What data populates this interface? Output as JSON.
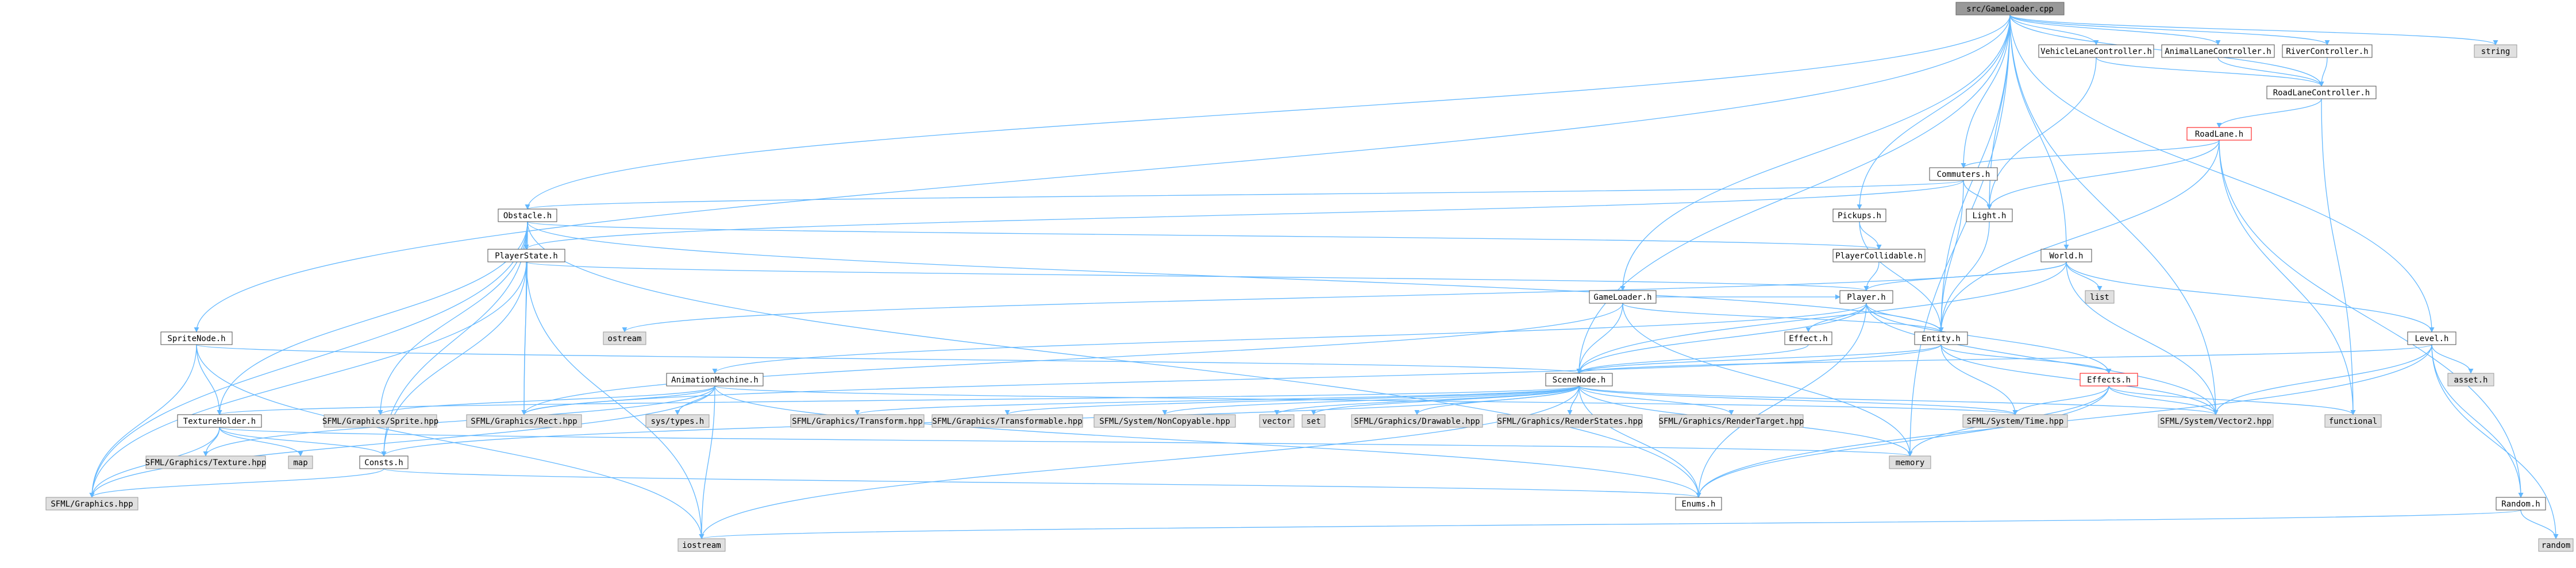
{
  "colors": {
    "edge": "#63b8ff",
    "project_fill": "#ffffff",
    "project_stroke": "#4d4d4d",
    "external_fill": "#e0e0e0",
    "external_stroke": "#999999",
    "root_fill": "#999999",
    "root_stroke": "#666666",
    "highlight_stroke": "#ff0000"
  },
  "nodes": [
    {
      "id": "root",
      "label": "src/GameLoader.cpp",
      "kind": "root"
    },
    {
      "id": "vlc",
      "label": "VehicleLaneController.h",
      "kind": "project"
    },
    {
      "id": "alc",
      "label": "AnimalLaneController.h",
      "kind": "project"
    },
    {
      "id": "rvc",
      "label": "RiverController.h",
      "kind": "project"
    },
    {
      "id": "string",
      "label": "string",
      "kind": "external"
    },
    {
      "id": "rlc",
      "label": "RoadLaneController.h",
      "kind": "project"
    },
    {
      "id": "roadlane",
      "label": "RoadLane.h",
      "kind": "highlight"
    },
    {
      "id": "commuters",
      "label": "Commuters.h",
      "kind": "project"
    },
    {
      "id": "obstacle",
      "label": "Obstacle.h",
      "kind": "project"
    },
    {
      "id": "pickups",
      "label": "Pickups.h",
      "kind": "project"
    },
    {
      "id": "light",
      "label": "Light.h",
      "kind": "project"
    },
    {
      "id": "playerstate",
      "label": "PlayerState.h",
      "kind": "project"
    },
    {
      "id": "playercollidable",
      "label": "PlayerCollidable.h",
      "kind": "project"
    },
    {
      "id": "world",
      "label": "World.h",
      "kind": "project"
    },
    {
      "id": "list",
      "label": "list",
      "kind": "external"
    },
    {
      "id": "gameloader",
      "label": "GameLoader.h",
      "kind": "project"
    },
    {
      "id": "player",
      "label": "Player.h",
      "kind": "project"
    },
    {
      "id": "ostream",
      "label": "ostream",
      "kind": "external"
    },
    {
      "id": "spritenode",
      "label": "SpriteNode.h",
      "kind": "project"
    },
    {
      "id": "level",
      "label": "Level.h",
      "kind": "project"
    },
    {
      "id": "effect",
      "label": "Effect.h",
      "kind": "project"
    },
    {
      "id": "entity",
      "label": "Entity.h",
      "kind": "project"
    },
    {
      "id": "animationmachine",
      "label": "AnimationMachine.h",
      "kind": "project"
    },
    {
      "id": "scenenode",
      "label": "SceneNode.h",
      "kind": "project"
    },
    {
      "id": "effects",
      "label": "Effects.h",
      "kind": "highlight"
    },
    {
      "id": "asseth",
      "label": "asset.h",
      "kind": "external"
    },
    {
      "id": "textureholder",
      "label": "TextureHolder.h",
      "kind": "project"
    },
    {
      "id": "sprite",
      "label": "SFML/Graphics/Sprite.hpp",
      "kind": "external"
    },
    {
      "id": "rect",
      "label": "SFML/Graphics/Rect.hpp",
      "kind": "external"
    },
    {
      "id": "systypes",
      "label": "sys/types.h",
      "kind": "external"
    },
    {
      "id": "transform",
      "label": "SFML/Graphics/Transform.hpp",
      "kind": "external"
    },
    {
      "id": "transformable",
      "label": "SFML/Graphics/Transformable.hpp",
      "kind": "external"
    },
    {
      "id": "noncopyable",
      "label": "SFML/System/NonCopyable.hpp",
      "kind": "external"
    },
    {
      "id": "vector",
      "label": "vector",
      "kind": "external"
    },
    {
      "id": "set",
      "label": "set",
      "kind": "external"
    },
    {
      "id": "drawable",
      "label": "SFML/Graphics/Drawable.hpp",
      "kind": "external"
    },
    {
      "id": "renderstates",
      "label": "SFML/Graphics/RenderStates.hpp",
      "kind": "external"
    },
    {
      "id": "rendertarget",
      "label": "SFML/Graphics/RenderTarget.hpp",
      "kind": "external"
    },
    {
      "id": "time",
      "label": "SFML/System/Time.hpp",
      "kind": "external"
    },
    {
      "id": "vector2",
      "label": "SFML/System/Vector2.hpp",
      "kind": "external"
    },
    {
      "id": "functional",
      "label": "functional",
      "kind": "external"
    },
    {
      "id": "texture",
      "label": "SFML/Graphics/Texture.hpp",
      "kind": "external"
    },
    {
      "id": "map",
      "label": "map",
      "kind": "external"
    },
    {
      "id": "consts",
      "label": "Consts.h",
      "kind": "project"
    },
    {
      "id": "memory",
      "label": "memory",
      "kind": "external"
    },
    {
      "id": "graphics",
      "label": "SFML/Graphics.hpp",
      "kind": "external"
    },
    {
      "id": "enums",
      "label": "Enums.h",
      "kind": "project"
    },
    {
      "id": "random",
      "label": "Random.h",
      "kind": "project"
    },
    {
      "id": "iostream",
      "label": "iostream",
      "kind": "external"
    },
    {
      "id": "randomh",
      "label": "random",
      "kind": "external"
    }
  ],
  "edges": [
    [
      "root",
      "vlc"
    ],
    [
      "root",
      "alc"
    ],
    [
      "root",
      "rvc"
    ],
    [
      "root",
      "string"
    ],
    [
      "root",
      "rlc"
    ],
    [
      "root",
      "commuters"
    ],
    [
      "root",
      "obstacle"
    ],
    [
      "root",
      "pickups"
    ],
    [
      "root",
      "light"
    ],
    [
      "root",
      "world"
    ],
    [
      "root",
      "gameloader"
    ],
    [
      "root",
      "spritenode"
    ],
    [
      "root",
      "level"
    ],
    [
      "root",
      "entity"
    ],
    [
      "root",
      "scenenode"
    ],
    [
      "root",
      "vector2"
    ],
    [
      "root",
      "memory"
    ],
    [
      "vlc",
      "rlc"
    ],
    [
      "vlc",
      "light"
    ],
    [
      "alc",
      "rlc"
    ],
    [
      "rvc",
      "rlc"
    ],
    [
      "rlc",
      "roadlane"
    ],
    [
      "rlc",
      "functional"
    ],
    [
      "roadlane",
      "commuters"
    ],
    [
      "roadlane",
      "light"
    ],
    [
      "roadlane",
      "entity"
    ],
    [
      "roadlane",
      "random"
    ],
    [
      "roadlane",
      "functional"
    ],
    [
      "commuters",
      "obstacle"
    ],
    [
      "commuters",
      "light"
    ],
    [
      "commuters",
      "entity"
    ],
    [
      "commuters",
      "playerstate"
    ],
    [
      "obstacle",
      "playerstate"
    ],
    [
      "obstacle",
      "playercollidable"
    ],
    [
      "obstacle",
      "entity"
    ],
    [
      "obstacle",
      "sprite"
    ],
    [
      "obstacle",
      "rect"
    ],
    [
      "obstacle",
      "textureholder"
    ],
    [
      "obstacle",
      "consts"
    ],
    [
      "obstacle",
      "graphics"
    ],
    [
      "obstacle",
      "enums"
    ],
    [
      "pickups",
      "playercollidable"
    ],
    [
      "pickups",
      "entity"
    ],
    [
      "light",
      "entity"
    ],
    [
      "playerstate",
      "player"
    ],
    [
      "playerstate",
      "rect"
    ],
    [
      "playerstate",
      "consts"
    ],
    [
      "playerstate",
      "iostream"
    ],
    [
      "playerstate",
      "graphics"
    ],
    [
      "playercollidable",
      "player"
    ],
    [
      "world",
      "list"
    ],
    [
      "world",
      "player"
    ],
    [
      "world",
      "scenenode"
    ],
    [
      "world",
      "vector2"
    ],
    [
      "world",
      "level"
    ],
    [
      "world",
      "ostream"
    ],
    [
      "gameloader",
      "player"
    ],
    [
      "gameloader",
      "scenenode"
    ],
    [
      "gameloader",
      "memory"
    ],
    [
      "gameloader",
      "rect"
    ],
    [
      "gameloader",
      "entity"
    ],
    [
      "player",
      "effect"
    ],
    [
      "player",
      "entity"
    ],
    [
      "player",
      "animationmachine"
    ],
    [
      "player",
      "scenenode"
    ],
    [
      "player",
      "vector2"
    ],
    [
      "player",
      "effects"
    ],
    [
      "player",
      "enums"
    ],
    [
      "spritenode",
      "scenenode"
    ],
    [
      "spritenode",
      "textureholder"
    ],
    [
      "spritenode",
      "graphics"
    ],
    [
      "spritenode",
      "iostream"
    ],
    [
      "level",
      "asseth"
    ],
    [
      "level",
      "scenenode"
    ],
    [
      "level",
      "vector2"
    ],
    [
      "level",
      "random"
    ],
    [
      "level",
      "enums"
    ],
    [
      "level",
      "randomh"
    ],
    [
      "effect",
      "scenenode"
    ],
    [
      "entity",
      "scenenode"
    ],
    [
      "entity",
      "vector2"
    ],
    [
      "entity",
      "time"
    ],
    [
      "entity",
      "effects"
    ],
    [
      "entity",
      "rect"
    ],
    [
      "animationmachine",
      "sprite"
    ],
    [
      "animationmachine",
      "rect"
    ],
    [
      "animationmachine",
      "systypes"
    ],
    [
      "animationmachine",
      "enums"
    ],
    [
      "animationmachine",
      "texture"
    ],
    [
      "animationmachine",
      "iostream"
    ],
    [
      "animationmachine",
      "graphics"
    ],
    [
      "animationmachine",
      "time"
    ],
    [
      "scenenode",
      "transform"
    ],
    [
      "scenenode",
      "transformable"
    ],
    [
      "scenenode",
      "noncopyable"
    ],
    [
      "scenenode",
      "vector"
    ],
    [
      "scenenode",
      "set"
    ],
    [
      "scenenode",
      "drawable"
    ],
    [
      "scenenode",
      "renderstates"
    ],
    [
      "scenenode",
      "rendertarget"
    ],
    [
      "scenenode",
      "time"
    ],
    [
      "scenenode",
      "vector2"
    ],
    [
      "scenenode",
      "memory"
    ],
    [
      "scenenode",
      "enums"
    ],
    [
      "scenenode",
      "consts"
    ],
    [
      "scenenode",
      "textureholder"
    ],
    [
      "scenenode",
      "iostream"
    ],
    [
      "effects",
      "time"
    ],
    [
      "effects",
      "vector2"
    ],
    [
      "effects",
      "memory"
    ],
    [
      "effects",
      "enums"
    ],
    [
      "effects",
      "functional"
    ],
    [
      "textureholder",
      "texture"
    ],
    [
      "textureholder",
      "map"
    ],
    [
      "textureholder",
      "memory"
    ],
    [
      "textureholder",
      "consts"
    ],
    [
      "textureholder",
      "graphics"
    ],
    [
      "consts",
      "graphics"
    ],
    [
      "consts",
      "enums"
    ],
    [
      "random",
      "iostream"
    ],
    [
      "random",
      "randomh"
    ]
  ]
}
